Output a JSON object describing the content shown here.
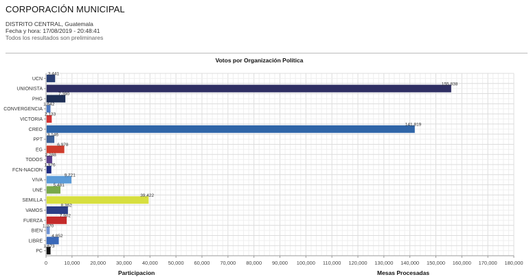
{
  "header": {
    "title": "CORPORACIÓN MUNICIPAL",
    "district": "DISTRITO CENTRAL, Guatemala",
    "datetime": "Fecha y hora: 17/08/2019 - 20:48:41",
    "note": "Todos los resultados son preliminares"
  },
  "footer": {
    "participation_label": "Participacion",
    "tables_label": "Mesas Procesadas"
  },
  "chart_data": {
    "type": "bar",
    "orientation": "horizontal",
    "title": "Votos por Organización Política",
    "xlabel": "",
    "ylabel": "",
    "xlim": [
      0,
      180000
    ],
    "xticks": [
      "0",
      "10,000",
      "20,000",
      "30,000",
      "40,000",
      "50,000",
      "60,000",
      "70,000",
      "80,000",
      "90,000",
      "100,000",
      "110,000",
      "120,000",
      "130,000",
      "140,000",
      "150,000",
      "160,000",
      "170,000",
      "180,000"
    ],
    "grid": true,
    "categories": [
      "UCN",
      "UNIONISTA",
      "PHG",
      "CONVERGENCIA",
      "VICTORIA",
      "CREO",
      "PPT",
      "EG",
      "TODOS",
      "FCN-NACION",
      "VIVA",
      "UNE",
      "SEMILLA",
      "VAMOS",
      "FUERZA",
      "BIEN",
      "LIBRE",
      "PC"
    ],
    "values": [
      3441,
      155838,
      7390,
      1642,
      2133,
      141819,
      3146,
      6978,
      2288,
      1976,
      9721,
      5481,
      39422,
      8362,
      7902,
      1370,
      4852,
      1673
    ],
    "labels": [
      "3,441",
      "155,838",
      "7,390",
      "1,642",
      "2,133",
      "141,819",
      "3,146",
      "6,978",
      "2,288",
      "1,976",
      "9,721",
      "5,481",
      "39,422",
      "8,362",
      "7,902",
      "1,370",
      "4,852",
      "1,673"
    ],
    "colors": [
      "#2a3f73",
      "#2f2f63",
      "#1d2e55",
      "#4b78c0",
      "#d33333",
      "#2f65a8",
      "#3a5f96",
      "#cf3b2b",
      "#5a3d8a",
      "#1d2a80",
      "#5b9bd8",
      "#78a84a",
      "#d7df3f",
      "#2c3d86",
      "#c42a2a",
      "#6f93d3",
      "#3a68b8",
      "#111111"
    ]
  }
}
